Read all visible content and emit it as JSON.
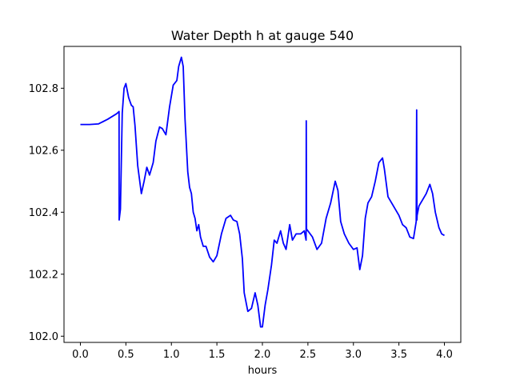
{
  "chart_data": {
    "type": "line",
    "title": "Water Depth h at gauge 540",
    "xlabel": "hours",
    "ylabel": "",
    "xlim": [
      -0.18,
      4.18
    ],
    "ylim": [
      101.98,
      102.935
    ],
    "xticks": [
      0.0,
      0.5,
      1.0,
      1.5,
      2.0,
      2.5,
      3.0,
      3.5,
      4.0
    ],
    "xtick_labels": [
      "0.0",
      "0.5",
      "1.0",
      "1.5",
      "2.0",
      "2.5",
      "3.0",
      "3.5",
      "4.0"
    ],
    "yticks": [
      102.0,
      102.2,
      102.4,
      102.6,
      102.8
    ],
    "ytick_labels": [
      "102.0",
      "102.2",
      "102.4",
      "102.6",
      "102.8"
    ],
    "grid": false,
    "series": [
      {
        "color": "#0000ff",
        "x": [
          0.0,
          0.1,
          0.2,
          0.3,
          0.4,
          0.425,
          0.426,
          0.44,
          0.46,
          0.48,
          0.5,
          0.53,
          0.56,
          0.58,
          0.6,
          0.63,
          0.67,
          0.7,
          0.73,
          0.76,
          0.8,
          0.83,
          0.87,
          0.9,
          0.94,
          0.98,
          1.02,
          1.06,
          1.08,
          1.11,
          1.13,
          1.15,
          1.18,
          1.2,
          1.22,
          1.24,
          1.26,
          1.28,
          1.3,
          1.32,
          1.35,
          1.38,
          1.42,
          1.46,
          1.5,
          1.55,
          1.6,
          1.65,
          1.68,
          1.72,
          1.75,
          1.78,
          1.8,
          1.84,
          1.88,
          1.92,
          1.95,
          1.98,
          2.0,
          2.03,
          2.06,
          2.1,
          2.13,
          2.16,
          2.2,
          2.23,
          2.26,
          2.3,
          2.33,
          2.37,
          2.42,
          2.46,
          2.48,
          2.482,
          2.485,
          2.487,
          2.5,
          2.55,
          2.6,
          2.65,
          2.7,
          2.75,
          2.8,
          2.83,
          2.86,
          2.9,
          2.95,
          3.0,
          3.04,
          3.07,
          3.1,
          3.13,
          3.16,
          3.2,
          3.24,
          3.28,
          3.32,
          3.34,
          3.38,
          3.42,
          3.46,
          3.5,
          3.54,
          3.58,
          3.62,
          3.66,
          3.69,
          3.695,
          3.698,
          3.7,
          3.72,
          3.76,
          3.8,
          3.84,
          3.87,
          3.9,
          3.94,
          3.97,
          4.0
        ],
        "values": [
          102.683,
          102.683,
          102.685,
          102.7,
          102.718,
          102.725,
          102.375,
          102.41,
          102.72,
          102.8,
          102.815,
          102.77,
          102.745,
          102.74,
          102.68,
          102.55,
          102.46,
          102.5,
          102.545,
          102.52,
          102.56,
          102.63,
          102.675,
          102.67,
          102.65,
          102.74,
          102.81,
          102.825,
          102.87,
          102.9,
          102.87,
          102.7,
          102.53,
          102.48,
          102.46,
          102.4,
          102.38,
          102.34,
          102.36,
          102.32,
          102.29,
          102.29,
          102.255,
          102.24,
          102.26,
          102.33,
          102.38,
          102.39,
          102.375,
          102.37,
          102.33,
          102.25,
          102.14,
          102.08,
          102.09,
          102.14,
          102.1,
          102.03,
          102.03,
          102.1,
          102.15,
          102.23,
          102.31,
          102.3,
          102.34,
          102.3,
          102.28,
          102.36,
          102.31,
          102.33,
          102.33,
          102.34,
          102.31,
          102.695,
          102.345,
          102.345,
          102.34,
          102.32,
          102.28,
          102.3,
          102.38,
          102.43,
          102.5,
          102.47,
          102.37,
          102.33,
          102.3,
          102.28,
          102.285,
          102.215,
          102.26,
          102.38,
          102.43,
          102.45,
          102.5,
          102.56,
          102.575,
          102.54,
          102.45,
          102.43,
          102.41,
          102.39,
          102.36,
          102.35,
          102.32,
          102.315,
          102.37,
          102.73,
          102.375,
          102.39,
          102.42,
          102.44,
          102.46,
          102.49,
          102.46,
          102.4,
          102.35,
          102.33,
          102.325
        ]
      }
    ]
  }
}
